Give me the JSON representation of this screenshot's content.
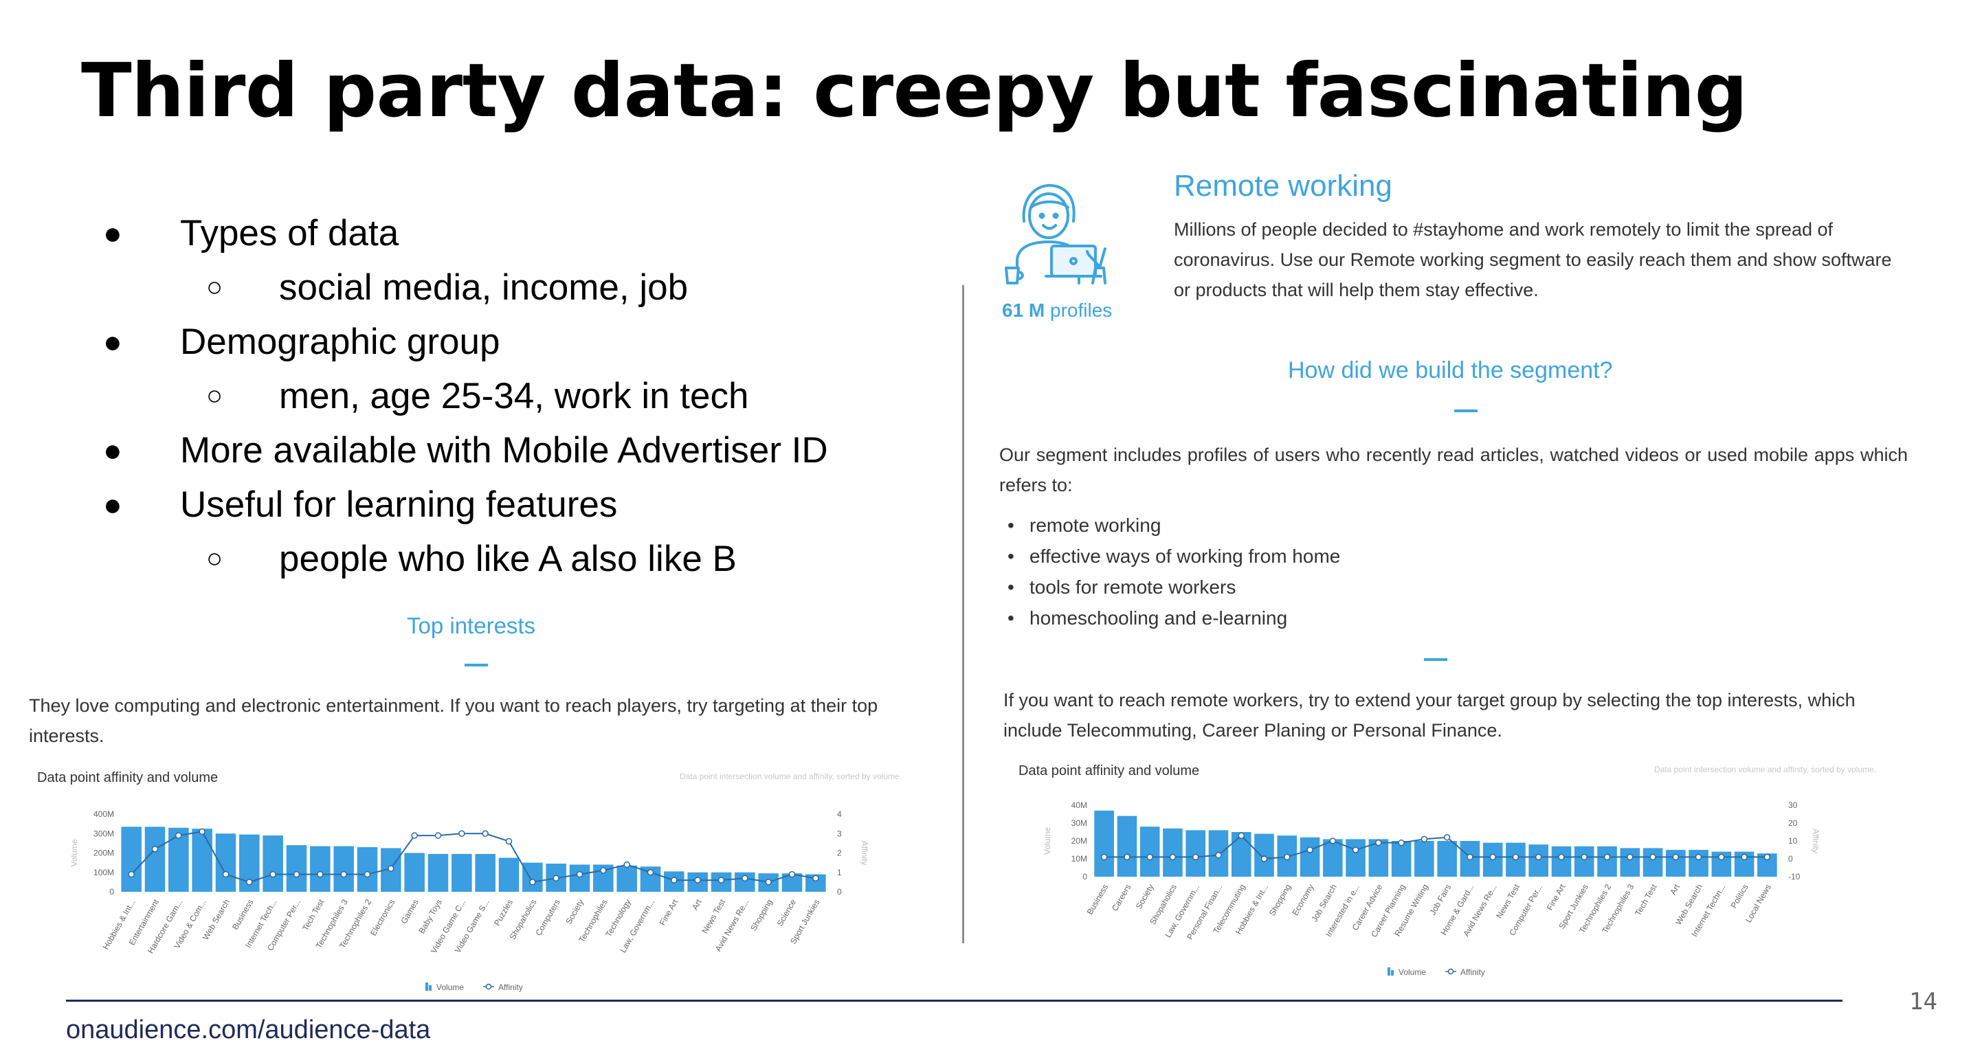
{
  "slide": {
    "title": "Third party data: creepy but fascinating",
    "page_number": "14",
    "footer_link": "onaudience.com/audience-data",
    "bullets": [
      {
        "level": 1,
        "marker": "●",
        "text": "Types of data"
      },
      {
        "level": 2,
        "marker": "○",
        "text": "social media, income, job"
      },
      {
        "level": 1,
        "marker": "●",
        "text": "Demographic group"
      },
      {
        "level": 2,
        "marker": "○",
        "text": "men, age 25-34, work in tech"
      },
      {
        "level": 1,
        "marker": "●",
        "text": "More available with Mobile Advertiser ID"
      },
      {
        "level": 1,
        "marker": "●",
        "text": "Useful for learning features"
      },
      {
        "level": 2,
        "marker": "○",
        "text": "people who like A also like B"
      }
    ]
  },
  "left_panel": {
    "heading": "Top interests",
    "description": "They love computing and electronic entertainment. If you want to reach players, try targeting at their top interests."
  },
  "right_panel": {
    "segment_title": "Remote working",
    "segment_description": "Millions of people decided to #stayhome and work remotely to limit the spread of coronavirus. Use our Remote working segment to easily reach them and show software or products that will help them stay effective.",
    "profiles_count": "61 M",
    "profiles_label": "profiles",
    "how_heading": "How did we build the segment?",
    "how_text": "Our segment includes profiles of users who recently read articles, watched videos or used mobile apps which refers to:",
    "how_items": [
      "remote working",
      "effective ways of working from home",
      "tools for remote workers",
      "homeschooling and e-learning"
    ],
    "reach_text": "If you want to reach remote workers, try to extend your target group by selecting the top interests, which include Telecommuting, Career Planing or Personal Finance."
  },
  "colors": {
    "accent_blue": "#3ea5de",
    "bar_blue": "#3a9ee0",
    "line_color": "#2d6aa3",
    "footer_navy": "#1f2a57"
  },
  "icon": "remote-worker-illustration-icon",
  "chart_data": [
    {
      "type": "bar",
      "title": "Data point affinity and volume",
      "subtitle": "Data point intersection volume and affinity, sorted by volume.",
      "ylabel": "Volume",
      "y2label": "Affinity",
      "ylim": [
        0,
        400
      ],
      "y2lim": [
        0,
        4
      ],
      "yticks": [
        "0",
        "100M",
        "200M",
        "300M",
        "400M"
      ],
      "y2ticks": [
        "0",
        "1",
        "2",
        "3",
        "4"
      ],
      "legend": [
        "Volume",
        "Affinity"
      ],
      "legend_position": "bottom",
      "categories": [
        "Hobbies & Int...",
        "Entertainment",
        "Hardcore Gam...",
        "Video & Com...",
        "Web Search",
        "Business",
        "Internet Tech...",
        "Computer Per...",
        "Tech Test",
        "Technophiles 3",
        "Technophiles 2",
        "Electronics",
        "Games",
        "Baby Toys",
        "Video Game C...",
        "Video Game S...",
        "Puzzles",
        "Shopaholics",
        "Computers",
        "Society",
        "Technophiles",
        "Technology",
        "Law, Governm...",
        "Fine Art",
        "Art",
        "News Test",
        "Avid News Re...",
        "Shopping",
        "Science",
        "Sport Junkies"
      ],
      "series": [
        {
          "name": "Volume",
          "values": [
            335,
            335,
            330,
            325,
            300,
            295,
            290,
            240,
            235,
            235,
            230,
            225,
            200,
            195,
            195,
            195,
            175,
            150,
            145,
            140,
            140,
            135,
            130,
            105,
            100,
            100,
            100,
            95,
            95,
            90
          ]
        },
        {
          "name": "Affinity",
          "values": [
            0.9,
            2.2,
            2.9,
            3.1,
            0.9,
            0.5,
            0.9,
            0.9,
            0.9,
            0.9,
            0.9,
            1.2,
            2.9,
            2.9,
            3.0,
            3.0,
            2.6,
            0.5,
            0.7,
            0.9,
            1.1,
            1.4,
            1.0,
            0.6,
            0.6,
            0.6,
            0.7,
            0.5,
            0.9,
            0.7
          ]
        }
      ]
    },
    {
      "type": "bar",
      "title": "Data point affinity and volume",
      "subtitle": "Data point intersection volume and affinity, sorted by volume.",
      "ylabel": "Volume",
      "y2label": "Affinity",
      "ylim": [
        0,
        40
      ],
      "y2lim": [
        -10,
        30
      ],
      "yticks": [
        "0",
        "10M",
        "20M",
        "30M",
        "40M"
      ],
      "y2ticks": [
        "-10",
        "0",
        "10",
        "20",
        "30"
      ],
      "legend": [
        "Volume",
        "Affinity"
      ],
      "legend_position": "bottom",
      "categories": [
        "Business",
        "Careers",
        "Society",
        "Shopaholics",
        "Law, Governm...",
        "Personal Finan...",
        "Telecommuting",
        "Hobbies & Int...",
        "Shopping",
        "Economy",
        "Job Search",
        "Interested in e...",
        "Career Advice",
        "Career Planning",
        "Resume Writing",
        "Job Fairs",
        "Home & Gard...",
        "Avid News Re...",
        "News Test",
        "Computer Per...",
        "Fine Art",
        "Sport Junkies",
        "Technophiles 2",
        "Technophiles 3",
        "Tech Test",
        "Art",
        "Web Search",
        "Internet Techn...",
        "Politics",
        "Local News"
      ],
      "series": [
        {
          "name": "Volume",
          "values": [
            37,
            34,
            28,
            27,
            26,
            26,
            25,
            24,
            23,
            22,
            21,
            21,
            21,
            20,
            20,
            20,
            20,
            19,
            19,
            18,
            17,
            17,
            17,
            16,
            16,
            15,
            15,
            14,
            14,
            13
          ]
        },
        {
          "name": "Affinity",
          "values": [
            1,
            1,
            1,
            1,
            1,
            2,
            13,
            0,
            1,
            5,
            10,
            5,
            9,
            9,
            11,
            12,
            1,
            1,
            1,
            1,
            1,
            1,
            1,
            1,
            1,
            1,
            1,
            1,
            1,
            1
          ]
        }
      ]
    }
  ]
}
